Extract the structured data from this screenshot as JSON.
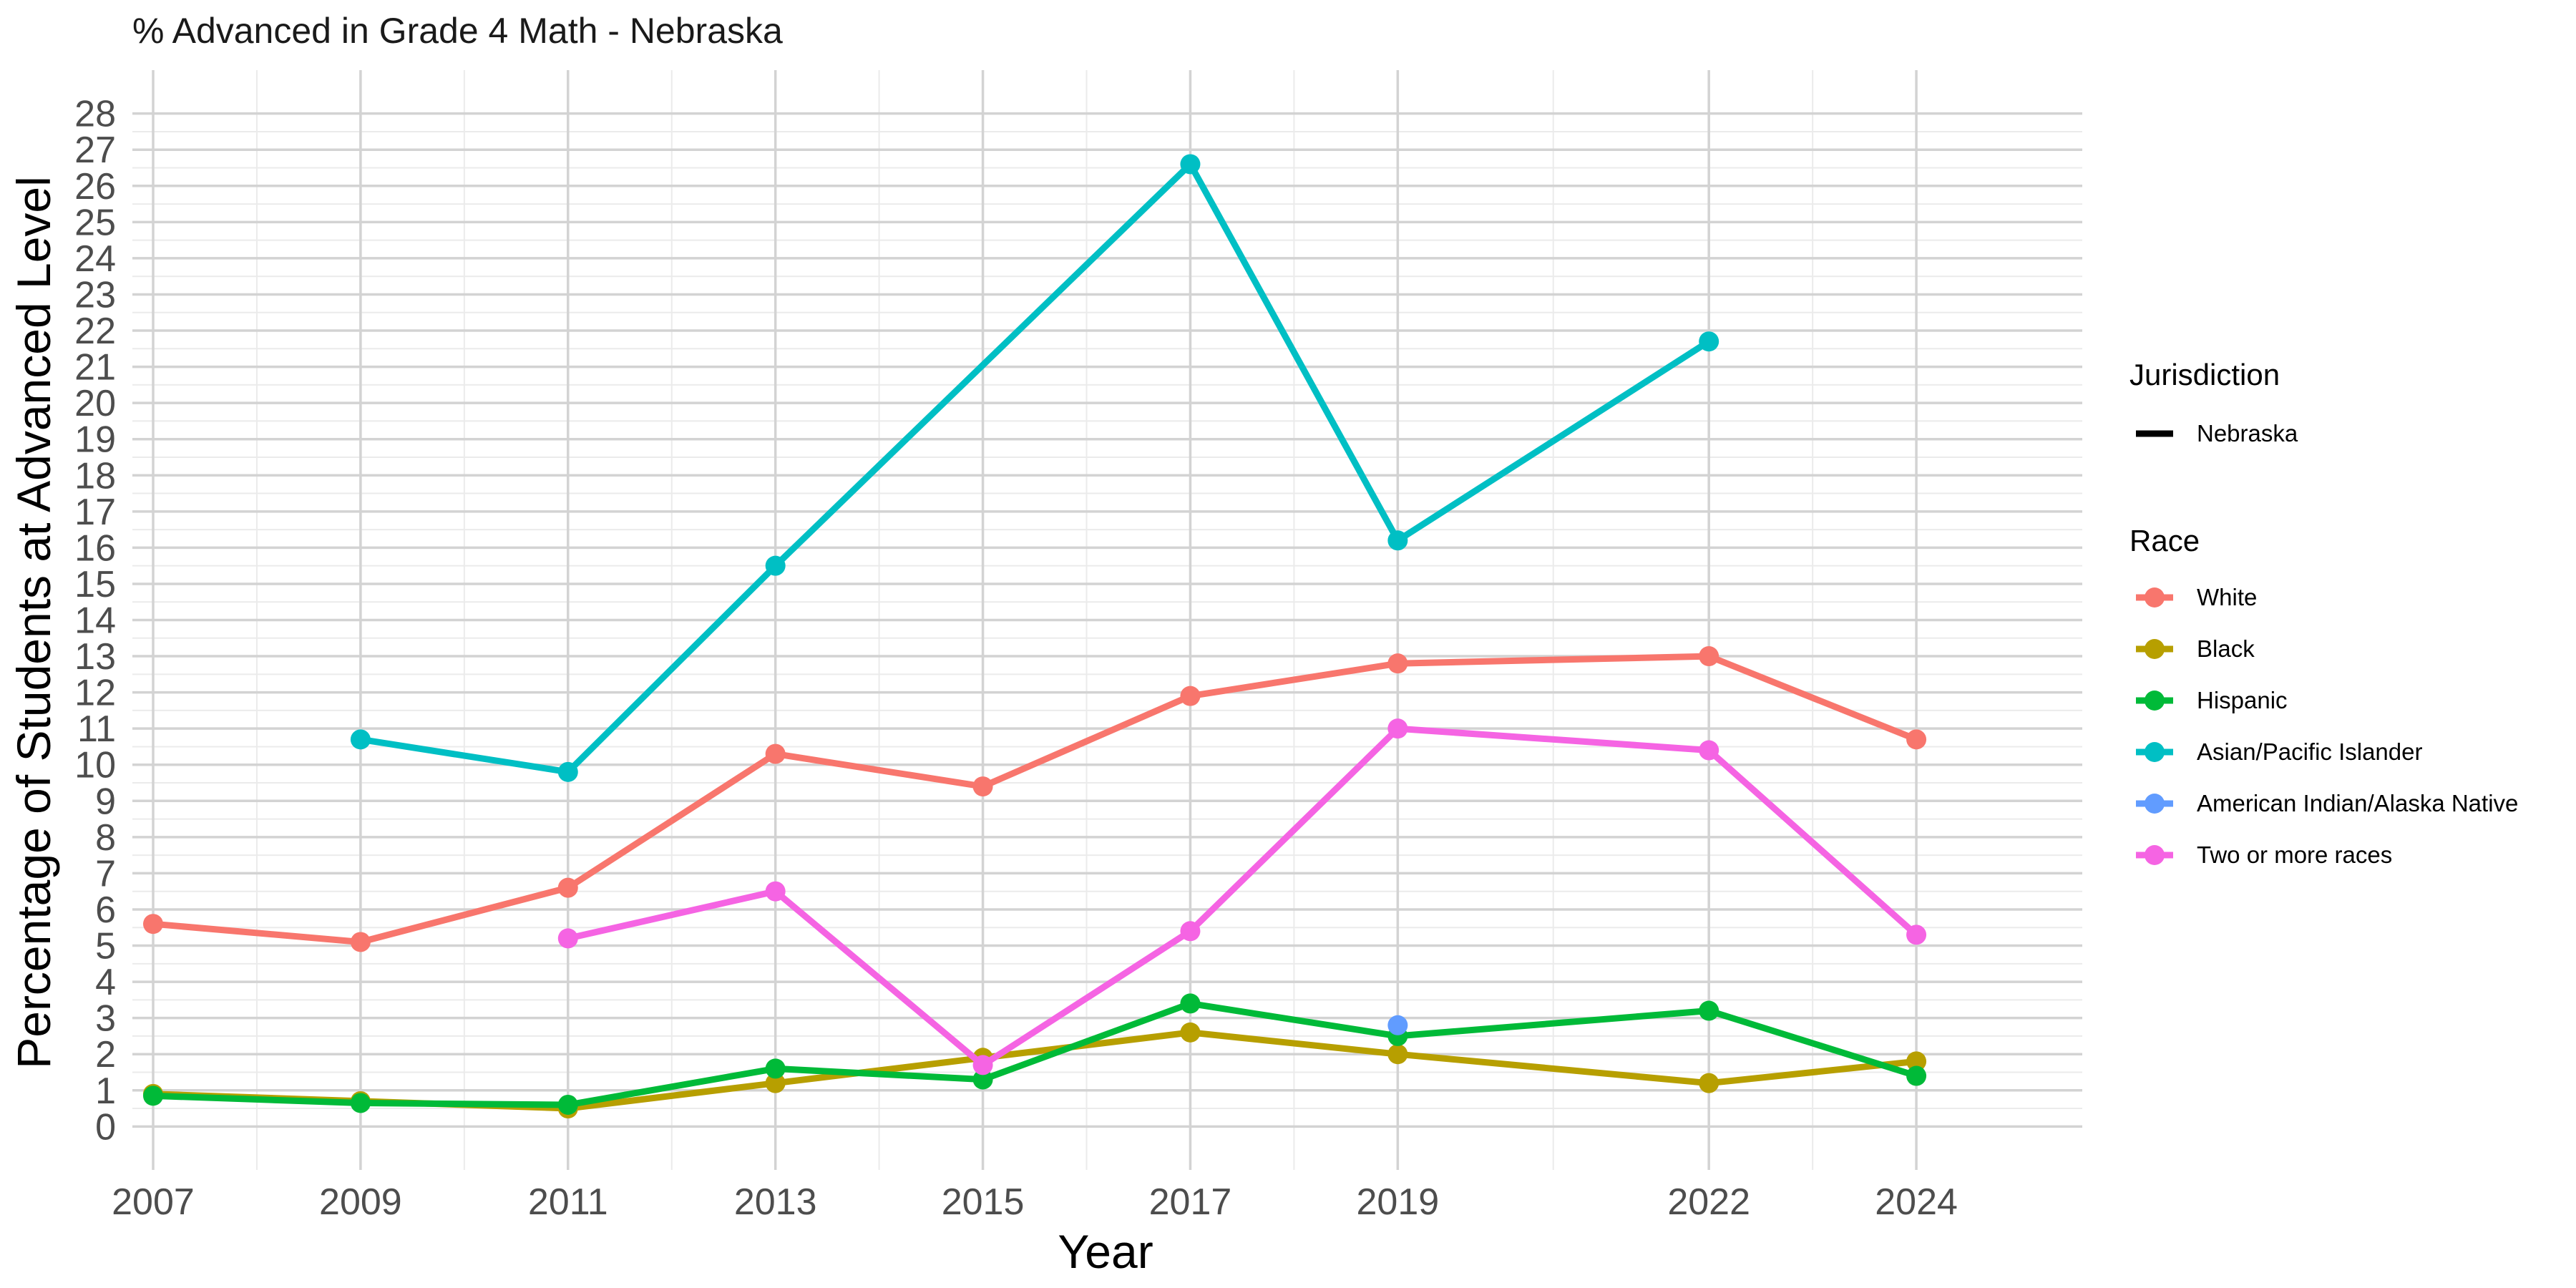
{
  "chart_data": {
    "type": "line",
    "title": "% Advanced in Grade 4 Math - Nebraska",
    "xlabel": "Year",
    "ylabel": "Percentage of Students at Advanced Level",
    "x_ticks": [
      "2007",
      "2009",
      "2011",
      "2013",
      "2015",
      "2017",
      "2019",
      "2022",
      "2024"
    ],
    "y_ticks": [
      "0",
      "1",
      "2",
      "3",
      "4",
      "5",
      "6",
      "7",
      "8",
      "9",
      "10",
      "11",
      "12",
      "13",
      "14",
      "15",
      "16",
      "17",
      "18",
      "19",
      "20",
      "21",
      "22",
      "23",
      "24",
      "25",
      "26",
      "27",
      "28"
    ],
    "xlim": [
      2006.8,
      2025.6
    ],
    "ylim": [
      -1.2,
      29.2
    ],
    "grid": true,
    "legend_position": "right",
    "legend": {
      "jurisdiction_title": "Jurisdiction",
      "jurisdiction_items": [
        "Nebraska"
      ],
      "race_title": "Race"
    },
    "series": [
      {
        "name": "White",
        "color": "#F8766D",
        "points": [
          [
            2007,
            5.6
          ],
          [
            2009,
            5.1
          ],
          [
            2011,
            6.6
          ],
          [
            2013,
            10.3
          ],
          [
            2015,
            9.4
          ],
          [
            2017,
            11.9
          ],
          [
            2019,
            12.8
          ],
          [
            2022,
            13.0
          ],
          [
            2024,
            10.7
          ]
        ]
      },
      {
        "name": "Black",
        "color": "#B79F00",
        "points": [
          [
            2007,
            0.9
          ],
          [
            2009,
            0.7
          ],
          [
            2011,
            0.5
          ],
          [
            2013,
            1.2
          ],
          [
            2015,
            1.9
          ],
          [
            2017,
            2.6
          ],
          [
            2019,
            2.0
          ],
          [
            2022,
            1.2
          ],
          [
            2024,
            1.8
          ]
        ]
      },
      {
        "name": "Hispanic",
        "color": "#00BA38",
        "points": [
          [
            2007,
            0.85
          ],
          [
            2009,
            0.65
          ],
          [
            2011,
            0.6
          ],
          [
            2013,
            1.6
          ],
          [
            2015,
            1.3
          ],
          [
            2017,
            3.4
          ],
          [
            2019,
            2.5
          ],
          [
            2022,
            3.2
          ],
          [
            2024,
            1.4
          ]
        ]
      },
      {
        "name": "Asian/Pacific Islander",
        "color": "#00BFC4",
        "points": [
          [
            2009,
            10.7
          ],
          [
            2011,
            9.8
          ],
          [
            2013,
            15.5
          ],
          [
            2017,
            26.6
          ],
          [
            2019,
            16.2
          ],
          [
            2022,
            21.7
          ]
        ]
      },
      {
        "name": "American Indian/Alaska Native",
        "color": "#619CFF",
        "points": [
          [
            2019,
            2.8
          ]
        ]
      },
      {
        "name": "Two or more races",
        "color": "#F564E3",
        "points": [
          [
            2011,
            5.2
          ],
          [
            2013,
            6.5
          ],
          [
            2015,
            1.7
          ],
          [
            2017,
            5.4
          ],
          [
            2019,
            11.0
          ],
          [
            2022,
            10.4
          ],
          [
            2024,
            5.3
          ]
        ]
      }
    ]
  }
}
